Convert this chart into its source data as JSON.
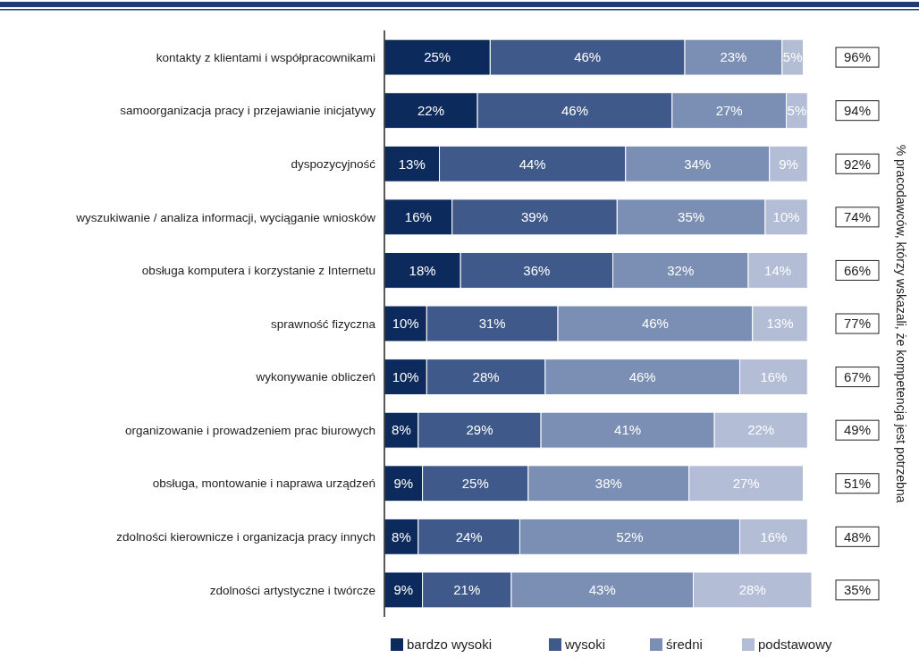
{
  "chart_data": {
    "type": "bar",
    "orientation": "horizontal",
    "stacked": true,
    "legend": "bottom",
    "categories": [
      "kontakty z klientami i współpracownikami",
      "samoorganizacja pracy i przejawianie inicjatywy",
      "dyspozycyjność",
      "wyszukiwanie / analiza informacji, wyciąganie wniosków",
      "obsługa komputera i korzystanie z Internetu",
      "sprawność fizyczna",
      "wykonywanie obliczeń",
      "organizowanie i prowadzeniem prac biurowych",
      "obsługa, montowanie i naprawa urządzeń",
      "zdolności kierownicze i organizacja pracy innych",
      "zdolności artystyczne i twórcze"
    ],
    "series": [
      {
        "name": "bardzo wysoki",
        "color": "#0d2a5c",
        "values": [
          25,
          22,
          13,
          16,
          18,
          10,
          10,
          8,
          9,
          8,
          9
        ],
        "value_labels": [
          "25%",
          "22%",
          "13%",
          "16%",
          "18%",
          "10%",
          "10%",
          "8%",
          "9%",
          "8%",
          "9%"
        ]
      },
      {
        "name": "wysoki",
        "color": "#3f5a8a",
        "values": [
          46,
          46,
          44,
          39,
          36,
          31,
          28,
          29,
          25,
          24,
          21
        ],
        "value_labels": [
          "46%",
          "46%",
          "44%",
          "39%",
          "36%",
          "31%",
          "28%",
          "29%",
          "25%",
          "24%",
          "21%"
        ]
      },
      {
        "name": "średni",
        "color": "#7b8fb5",
        "values": [
          23,
          27,
          34,
          35,
          32,
          46,
          46,
          41,
          38,
          52,
          43
        ],
        "value_labels": [
          "23%",
          "27%",
          "34%",
          "35%",
          "32%",
          "46%",
          "46%",
          "41%",
          "38%",
          "52%",
          "43%"
        ]
      },
      {
        "name": "podstawowy",
        "color": "#b3bdd6",
        "values": [
          5,
          5,
          9,
          10,
          14,
          13,
          16,
          22,
          27,
          16,
          28
        ],
        "value_labels": [
          "5%",
          "5%",
          "9%",
          "10%",
          "14%",
          "13%",
          "16%",
          "22%",
          "27%",
          "16%",
          "28%"
        ]
      }
    ],
    "annotations": [
      "96%",
      "94%",
      "92%",
      "74%",
      "66%",
      "77%",
      "67%",
      "49%",
      "51%",
      "48%",
      "35%",
      "% pracodawców, którzy wskazali, że kompetencja jest potrzebna"
    ]
  }
}
